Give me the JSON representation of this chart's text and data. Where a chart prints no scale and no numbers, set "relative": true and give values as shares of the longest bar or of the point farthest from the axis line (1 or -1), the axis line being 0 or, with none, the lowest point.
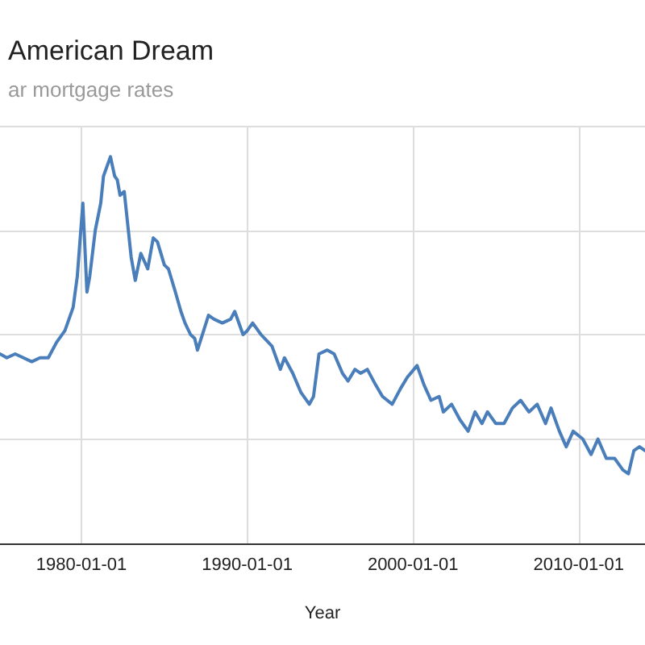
{
  "chart_data": {
    "type": "line",
    "title": "American Dream",
    "subtitle": "ar mortgage rates",
    "xlabel": "Year",
    "relative": true,
    "grid": true,
    "marker": "none",
    "line_style": "solid",
    "xlim": [
      "1975-02",
      "2014-01"
    ],
    "xticks": [
      "1980-01-01",
      "1990-01-01",
      "2000-01-01",
      "2010-01-01"
    ],
    "series": [
      {
        "color": "#4a7ebb",
        "x": [
          "1975-02",
          "1975-07",
          "1976-01",
          "1976-07",
          "1977-01",
          "1977-07",
          "1978-01",
          "1978-07",
          "1979-01",
          "1979-07",
          "1979-10",
          "1980-02",
          "1980-05",
          "1980-07",
          "1980-11",
          "1981-03",
          "1981-05",
          "1981-10",
          "1982-01",
          "1982-03",
          "1982-05",
          "1982-08",
          "1983-01",
          "1983-04",
          "1983-08",
          "1984-01",
          "1984-05",
          "1984-08",
          "1985-01",
          "1985-04",
          "1985-09",
          "1986-01",
          "1986-04",
          "1986-08",
          "1986-11",
          "1987-01",
          "1987-09",
          "1988-01",
          "1988-07",
          "1989-01",
          "1989-04",
          "1989-10",
          "1990-01",
          "1990-05",
          "1990-11",
          "1991-07",
          "1992-01",
          "1992-04",
          "1992-10",
          "1993-04",
          "1993-10",
          "1994-01",
          "1994-05",
          "1994-11",
          "1995-04",
          "1995-10",
          "1996-02",
          "1996-07",
          "1996-11",
          "1997-04",
          "1997-10",
          "1998-03",
          "1998-10",
          "1999-04",
          "1999-09",
          "2000-04",
          "2000-09",
          "2001-02",
          "2001-08",
          "2001-11",
          "2002-05",
          "2002-11",
          "2003-05",
          "2003-10",
          "2004-03",
          "2004-07",
          "2005-01",
          "2005-07",
          "2006-01",
          "2006-07",
          "2007-01",
          "2007-07",
          "2008-01",
          "2008-05",
          "2008-11",
          "2009-04",
          "2009-09",
          "2010-04",
          "2010-10",
          "2011-03",
          "2011-09",
          "2012-03",
          "2012-09",
          "2013-01",
          "2013-05",
          "2013-09",
          "2014-01"
        ],
        "values": [
          0.49,
          0.48,
          0.49,
          0.48,
          0.47,
          0.48,
          0.48,
          0.52,
          0.55,
          0.61,
          0.69,
          0.88,
          0.65,
          0.69,
          0.81,
          0.88,
          0.95,
          1,
          0.95,
          0.94,
          0.9,
          0.91,
          0.74,
          0.68,
          0.75,
          0.71,
          0.79,
          0.78,
          0.72,
          0.71,
          0.65,
          0.6,
          0.57,
          0.54,
          0.53,
          0.5,
          0.59,
          0.58,
          0.57,
          0.58,
          0.6,
          0.54,
          0.55,
          0.57,
          0.54,
          0.51,
          0.45,
          0.48,
          0.44,
          0.39,
          0.36,
          0.38,
          0.49,
          0.5,
          0.49,
          0.44,
          0.42,
          0.45,
          0.44,
          0.45,
          0.41,
          0.38,
          0.36,
          0.4,
          0.43,
          0.46,
          0.41,
          0.37,
          0.38,
          0.34,
          0.36,
          0.32,
          0.29,
          0.34,
          0.31,
          0.34,
          0.31,
          0.31,
          0.35,
          0.37,
          0.34,
          0.36,
          0.31,
          0.35,
          0.29,
          0.25,
          0.29,
          0.27,
          0.23,
          0.27,
          0.22,
          0.22,
          0.19,
          0.18,
          0.24,
          0.25,
          0.24
        ]
      }
    ]
  }
}
